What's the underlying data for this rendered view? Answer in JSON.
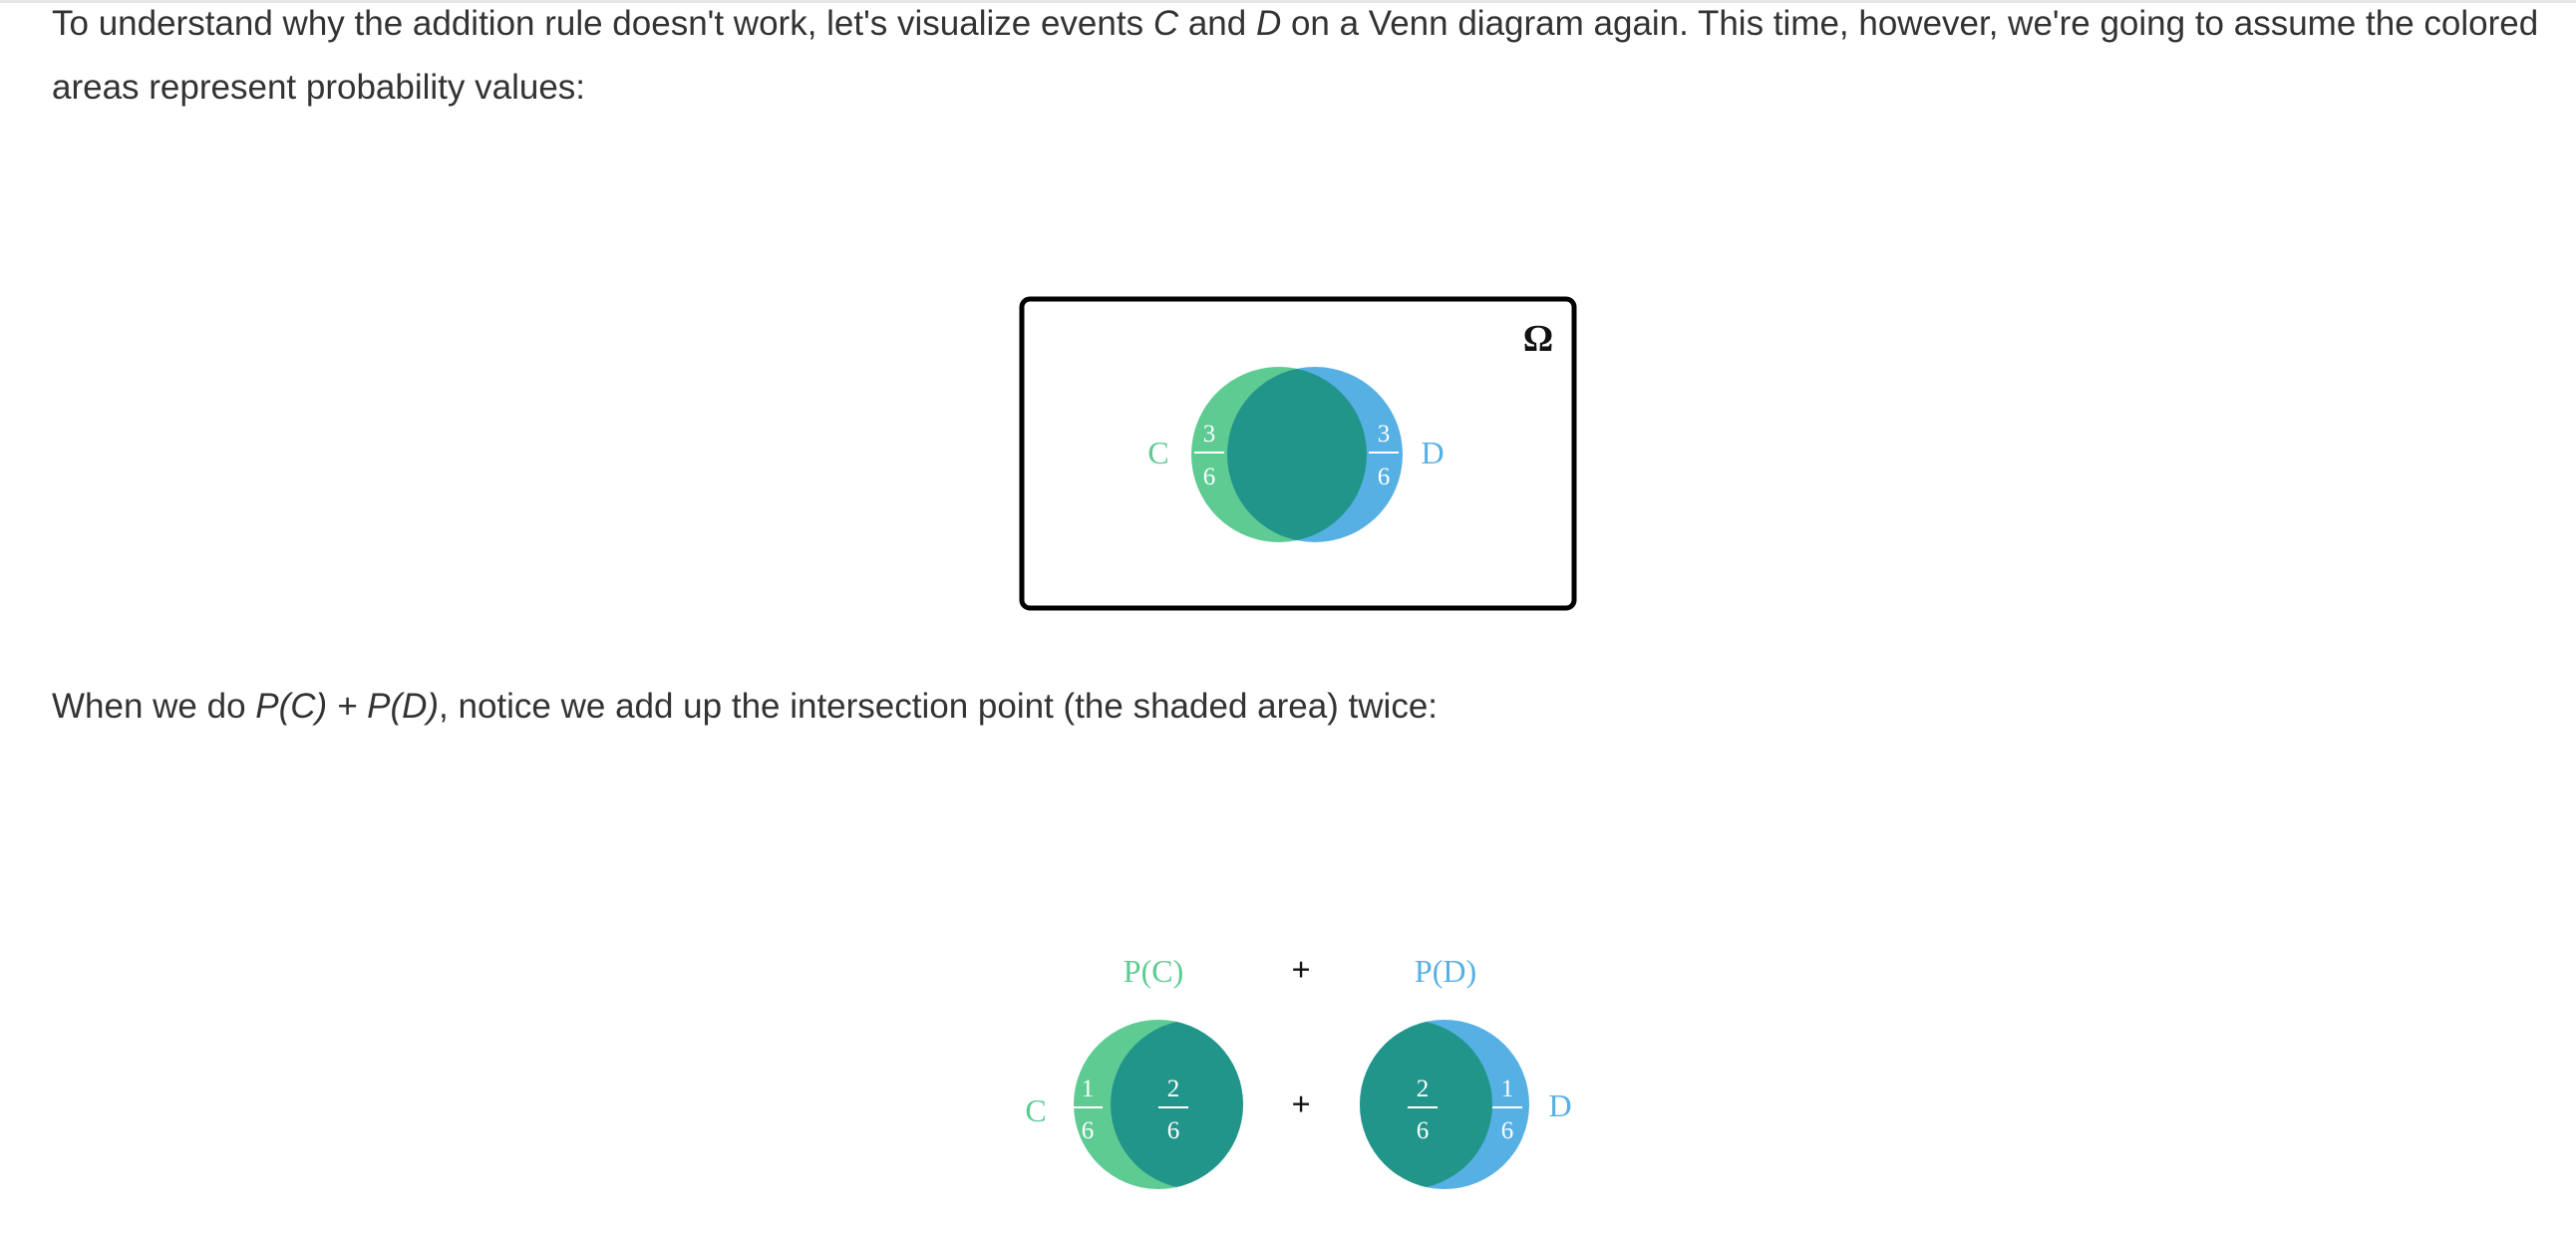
{
  "paragraph1": {
    "part1": "To understand why the addition rule doesn't work, let's visualize events ",
    "event_c": "C",
    "part2": " and ",
    "event_d": "D",
    "part3": " on a Venn diagram again. This time, however, we're going to assume the colored areas represent probability values:"
  },
  "paragraph2": {
    "part1": "When we do ",
    "expr": "P(C) + P(D)",
    "part2": ", notice we add up the intersection point (the shaded area) twice:"
  },
  "venn_diagram": {
    "omega_label": "Ω",
    "set_c_label": "C",
    "set_d_label": "D",
    "c_only": {
      "numerator": "3",
      "denominator": "6"
    },
    "d_only": {
      "numerator": "3",
      "denominator": "6"
    }
  },
  "sum_diagram": {
    "pc_label": "P(C)",
    "pd_label": "P(D)",
    "plus_top": "+",
    "plus_mid": "+",
    "set_c_label": "C",
    "set_d_label": "D",
    "c_only": {
      "numerator": "1",
      "denominator": "6"
    },
    "c_intersection": {
      "numerator": "2",
      "denominator": "6"
    },
    "d_intersection": {
      "numerator": "2",
      "denominator": "6"
    },
    "d_only": {
      "numerator": "1",
      "denominator": "6"
    }
  },
  "colors": {
    "c_green": "#5ecb93",
    "d_blue": "#56b0e4",
    "intersection_teal": "#22958b",
    "text": "#333333"
  }
}
